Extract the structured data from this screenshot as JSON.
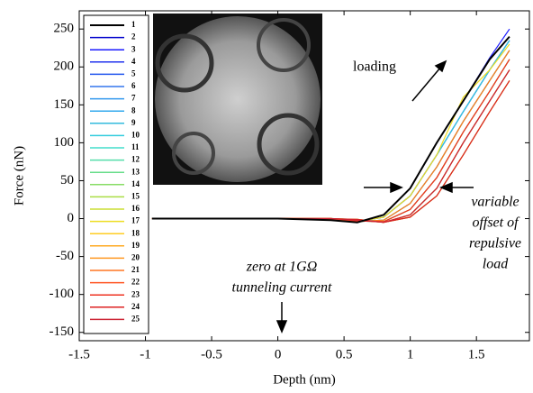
{
  "chart_data": {
    "type": "line",
    "x_label": "Depth (nm)",
    "y_label": "Force (nN)",
    "xlim": [
      -1.5,
      1.9
    ],
    "ylim": [
      -161,
      274
    ],
    "xticks": [
      -1.5,
      -1,
      -0.5,
      0,
      0.5,
      1,
      1.5
    ],
    "yticks": [
      -150,
      -100,
      -50,
      0,
      50,
      100,
      150,
      200,
      250
    ],
    "grid": false,
    "legend": "upper left",
    "annotations": {
      "loading": "loading",
      "offset": [
        "variable",
        "offset of",
        "repulsive",
        "load"
      ],
      "zero": [
        "zero at 1GΩ",
        "tunneling current"
      ]
    },
    "x": [
      -0.95,
      0,
      0.4,
      0.6,
      0.8,
      1.0,
      1.2,
      1.4,
      1.6,
      1.75
    ],
    "series": [
      {
        "name": "1",
        "color": "#000000",
        "values": [
          0,
          0,
          -2,
          -5,
          5,
          40,
          100,
          155,
          210,
          240
        ]
      },
      {
        "name": "2",
        "color": "#0000cc",
        "values": [
          0,
          0,
          -1,
          -4,
          2,
          30,
          84,
          141,
          196,
          235
        ]
      },
      {
        "name": "3",
        "color": "#1a1aff",
        "values": [
          0,
          0,
          -2,
          -5,
          5,
          40,
          100,
          155,
          212,
          250
        ]
      },
      {
        "name": "4",
        "color": "#2233ee",
        "values": [
          0,
          0,
          -1,
          -4,
          -2,
          20,
          68,
          128,
          182,
          222
        ]
      },
      {
        "name": "5",
        "color": "#2255ee",
        "values": [
          0,
          0,
          -1,
          -4,
          2,
          30,
          84,
          141,
          196,
          235
        ]
      },
      {
        "name": "6",
        "color": "#3377ee",
        "values": [
          0,
          0,
          0,
          -3,
          -4,
          12,
          54,
          114,
          168,
          210
        ]
      },
      {
        "name": "7",
        "color": "#3399ee",
        "values": [
          0,
          0,
          -1,
          -4,
          -2,
          20,
          68,
          128,
          182,
          222
        ]
      },
      {
        "name": "8",
        "color": "#33aaee",
        "values": [
          0,
          0,
          0,
          -2,
          -5,
          5,
          40,
          100,
          155,
          196
        ]
      },
      {
        "name": "9",
        "color": "#33bbdd",
        "values": [
          0,
          0,
          0,
          -3,
          -4,
          12,
          54,
          114,
          168,
          210
        ]
      },
      {
        "name": "10",
        "color": "#33ccdd",
        "values": [
          0,
          0,
          -1,
          -4,
          2,
          30,
          84,
          141,
          196,
          235
        ]
      },
      {
        "name": "11",
        "color": "#44ddcc",
        "values": [
          0,
          0,
          0,
          -1,
          -5,
          2,
          30,
          84,
          141,
          182
        ]
      },
      {
        "name": "12",
        "color": "#55ddaa",
        "values": [
          0,
          0,
          -1,
          -4,
          -2,
          20,
          68,
          128,
          182,
          222
        ]
      },
      {
        "name": "13",
        "color": "#66dd88",
        "values": [
          0,
          0,
          0,
          -2,
          -5,
          5,
          40,
          100,
          155,
          196
        ]
      },
      {
        "name": "14",
        "color": "#88dd66",
        "values": [
          0,
          0,
          0,
          -3,
          -4,
          12,
          54,
          114,
          168,
          210
        ]
      },
      {
        "name": "15",
        "color": "#aadd44",
        "values": [
          0,
          0,
          -1,
          -4,
          -2,
          20,
          68,
          128,
          182,
          222
        ]
      },
      {
        "name": "16",
        "color": "#ccdd33",
        "values": [
          0,
          0,
          0,
          -1,
          -5,
          2,
          30,
          84,
          141,
          182
        ]
      },
      {
        "name": "17",
        "color": "#eedd22",
        "values": [
          0,
          0,
          -1,
          -4,
          2,
          30,
          84,
          160,
          196,
          230
        ]
      },
      {
        "name": "18",
        "color": "#ffcc22",
        "values": [
          0,
          0,
          0,
          -2,
          -5,
          5,
          40,
          100,
          155,
          196
        ]
      },
      {
        "name": "19",
        "color": "#ffaa22",
        "values": [
          0,
          0,
          0,
          -3,
          -4,
          12,
          54,
          114,
          168,
          210
        ]
      },
      {
        "name": "20",
        "color": "#ff9922",
        "values": [
          0,
          0,
          0,
          -1,
          -5,
          2,
          30,
          84,
          141,
          182
        ]
      },
      {
        "name": "21",
        "color": "#ff7722",
        "values": [
          0,
          0,
          -1,
          -4,
          -2,
          20,
          68,
          128,
          182,
          222
        ]
      },
      {
        "name": "22",
        "color": "#ff5522",
        "values": [
          0,
          0,
          0,
          -2,
          -5,
          5,
          40,
          100,
          155,
          196
        ]
      },
      {
        "name": "23",
        "color": "#ee3322",
        "values": [
          0,
          0,
          0,
          -3,
          -4,
          12,
          54,
          114,
          168,
          210
        ]
      },
      {
        "name": "24",
        "color": "#dd2222",
        "values": [
          0,
          0,
          0,
          -1,
          -5,
          2,
          30,
          84,
          141,
          182
        ]
      },
      {
        "name": "25",
        "color": "#cc2233",
        "values": [
          0,
          0,
          0,
          -2,
          -5,
          5,
          40,
          100,
          155,
          196
        ]
      }
    ]
  }
}
